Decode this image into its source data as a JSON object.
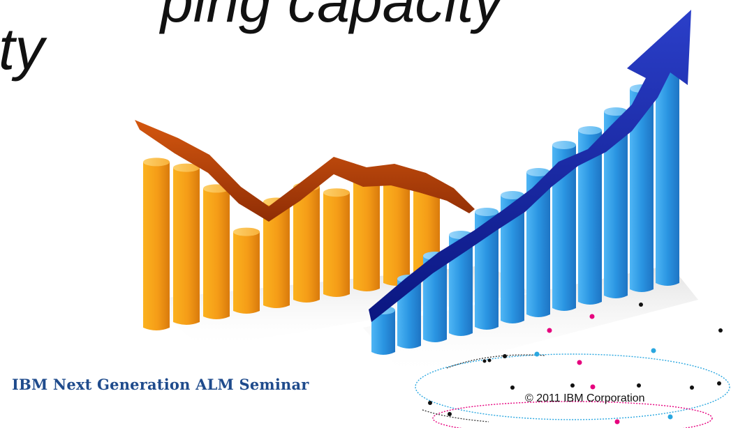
{
  "slide": {
    "title_line_1": "ping capacity",
    "title_line_2": "ty"
  },
  "graphic": {
    "declining_series": [
      88,
      82,
      68,
      42,
      55,
      60,
      54,
      60,
      55,
      48
    ],
    "rising_series": [
      20,
      32,
      40,
      47,
      55,
      60,
      68,
      78,
      82,
      88,
      96,
      110
    ],
    "colors": {
      "declining_bars": "#f4a11c",
      "declining_arrow": "#b3400a",
      "rising_bars": "#2f9be6",
      "rising_arrow": "#1323a8"
    }
  },
  "footer": {
    "seminar_name": "IBM Next Generation ALM Seminar",
    "copyright": "© 2011 IBM Corporation",
    "brand_color": "#1f4b8c",
    "dot_colors": [
      "#e6007e",
      "#2aa7e0",
      "#111111"
    ]
  }
}
